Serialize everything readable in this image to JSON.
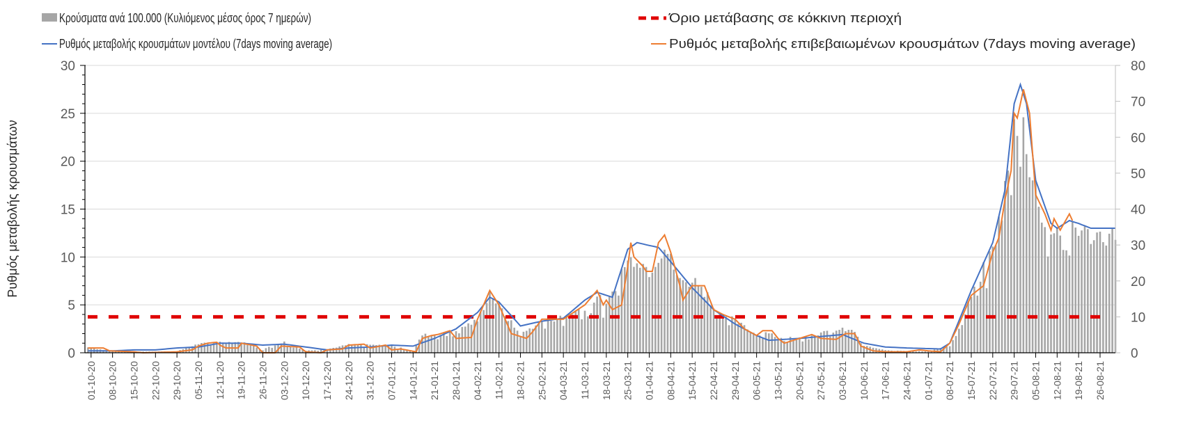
{
  "chart_data": {
    "type": "bar+line",
    "title": "",
    "ylabel": "Ρυθμός μεταβολής κρουσμάτων",
    "ylabel_right": "",
    "ylim": [
      0,
      30
    ],
    "ylim_right": [
      0,
      80
    ],
    "yticks": [
      "0",
      "5",
      "10",
      "15",
      "20",
      "25",
      "30"
    ],
    "yticks_right": [
      "0",
      "10",
      "20",
      "30",
      "40",
      "50",
      "60",
      "70",
      "80"
    ],
    "x_range": [
      "29-09-20",
      "31-08-21"
    ],
    "grid": true,
    "legend_position": "top",
    "xticks": [
      "01-10-20",
      "08-10-20",
      "15-10-20",
      "22-10-20",
      "29-10-20",
      "05-11-20",
      "12-11-20",
      "19-11-20",
      "26-11-20",
      "03-12-20",
      "10-12-20",
      "17-12-20",
      "24-12-20",
      "31-12-20",
      "07-01-21",
      "14-01-21",
      "21-01-21",
      "28-01-21",
      "04-02-21",
      "11-02-21",
      "18-02-21",
      "25-02-21",
      "04-03-21",
      "11-03-21",
      "18-03-21",
      "25-03-21",
      "01-04-21",
      "08-04-21",
      "15-04-21",
      "22-04-21",
      "29-04-21",
      "06-05-21",
      "13-05-21",
      "20-05-21",
      "27-05-21",
      "03-06-21",
      "10-06-21",
      "17-06-21",
      "24-06-21",
      "01-07-21",
      "08-07-21",
      "15-07-21",
      "22-07-21",
      "29-07-21",
      "05-08-21",
      "12-08-21",
      "19-08-21",
      "26-08-21"
    ],
    "series": [
      {
        "name": "Κρούσματα ανά 100.000 (Κυλιόμενος μέσος όρος 7 ημερών)",
        "type": "bar",
        "axis": "right",
        "color": "#a6a6a6",
        "points": [
          [
            "30-09-20",
            1.5
          ],
          [
            "07-10-20",
            0.5
          ],
          [
            "15-10-20",
            0.3
          ],
          [
            "29-10-20",
            0.4
          ],
          [
            "05-11-20",
            2.5
          ],
          [
            "12-11-20",
            3
          ],
          [
            "19-11-20",
            3
          ],
          [
            "26-11-20",
            1.0
          ],
          [
            "03-12-20",
            3
          ],
          [
            "10-12-20",
            0.6
          ],
          [
            "17-12-20",
            1
          ],
          [
            "24-12-20",
            2.3
          ],
          [
            "31-12-20",
            2.2
          ],
          [
            "07-01-21",
            2
          ],
          [
            "14-01-21",
            0.5
          ],
          [
            "17-01-21",
            5
          ],
          [
            "21-01-21",
            5
          ],
          [
            "28-01-21",
            6.5
          ],
          [
            "04-02-21",
            9
          ],
          [
            "08-02-21",
            17
          ],
          [
            "11-02-21",
            13
          ],
          [
            "18-02-21",
            5
          ],
          [
            "25-02-21",
            9
          ],
          [
            "04-03-21",
            10
          ],
          [
            "11-03-21",
            13
          ],
          [
            "15-03-21",
            16
          ],
          [
            "18-03-21",
            13
          ],
          [
            "24-03-21",
            25
          ],
          [
            "28-03-21",
            27
          ],
          [
            "01-04-21",
            23
          ],
          [
            "06-04-21",
            30
          ],
          [
            "08-04-21",
            26
          ],
          [
            "11-04-21",
            20
          ],
          [
            "15-04-21",
            20
          ],
          [
            "19-04-21",
            20
          ],
          [
            "22-04-21",
            12
          ],
          [
            "29-04-21",
            9
          ],
          [
            "06-05-21",
            5
          ],
          [
            "10-05-21",
            6
          ],
          [
            "13-05-21",
            4
          ],
          [
            "20-05-21",
            4.5
          ],
          [
            "27-05-21",
            5.5
          ],
          [
            "03-06-21",
            6.5
          ],
          [
            "07-06-21",
            6
          ],
          [
            "10-06-21",
            2
          ],
          [
            "17-06-21",
            0.7
          ],
          [
            "24-06-21",
            0.5
          ],
          [
            "01-07-21",
            0.4
          ],
          [
            "08-07-21",
            2
          ],
          [
            "12-07-21",
            8
          ],
          [
            "15-07-21",
            16
          ],
          [
            "22-07-21",
            29
          ],
          [
            "25-07-21",
            40
          ],
          [
            "29-07-21",
            63
          ],
          [
            "01-08-21",
            70
          ],
          [
            "03-08-21",
            50
          ],
          [
            "05-08-21",
            46
          ],
          [
            "08-08-21",
            36
          ],
          [
            "12-08-21",
            34
          ],
          [
            "16-08-21",
            37
          ],
          [
            "19-08-21",
            35
          ],
          [
            "22-08-21",
            33
          ],
          [
            "31-08-21",
            33
          ]
        ]
      },
      {
        "name": "Όριο μετάβασης σε κόκκινη περιοχή",
        "type": "hline",
        "axis": "left",
        "color": "#e00000",
        "value": 3.75
      },
      {
        "name": "Ρυθμός μεταβολής κρουσμάτων μοντέλου (7days moving average)",
        "type": "line",
        "axis": "left",
        "color": "#4472c4",
        "points": [
          [
            "30-09-20",
            0.2
          ],
          [
            "08-10-20",
            0.2
          ],
          [
            "15-10-20",
            0.3
          ],
          [
            "22-10-20",
            0.3
          ],
          [
            "29-10-20",
            0.5
          ],
          [
            "05-11-20",
            0.6
          ],
          [
            "12-11-20",
            1.0
          ],
          [
            "19-11-20",
            1.0
          ],
          [
            "26-11-20",
            0.8
          ],
          [
            "03-12-20",
            0.9
          ],
          [
            "10-12-20",
            0.6
          ],
          [
            "17-12-20",
            0.3
          ],
          [
            "24-12-20",
            0.5
          ],
          [
            "31-12-20",
            0.6
          ],
          [
            "07-01-21",
            0.8
          ],
          [
            "14-01-21",
            0.7
          ],
          [
            "21-01-21",
            1.5
          ],
          [
            "28-01-21",
            2.5
          ],
          [
            "04-02-21",
            4.2
          ],
          [
            "08-02-21",
            5.8
          ],
          [
            "11-02-21",
            5.3
          ],
          [
            "18-02-21",
            2.8
          ],
          [
            "25-02-21",
            3.3
          ],
          [
            "04-03-21",
            3.6
          ],
          [
            "11-03-21",
            5.5
          ],
          [
            "15-03-21",
            6.3
          ],
          [
            "20-03-21",
            5.8
          ],
          [
            "25-03-21",
            10.8
          ],
          [
            "28-03-21",
            11.5
          ],
          [
            "01-04-21",
            11.2
          ],
          [
            "04-04-21",
            11.0
          ],
          [
            "08-04-21",
            9.5
          ],
          [
            "15-04-21",
            6.8
          ],
          [
            "22-04-21",
            4.5
          ],
          [
            "29-04-21",
            3.0
          ],
          [
            "06-05-21",
            1.8
          ],
          [
            "10-05-21",
            1.3
          ],
          [
            "20-05-21",
            1.5
          ],
          [
            "27-05-21",
            1.7
          ],
          [
            "03-06-21",
            1.9
          ],
          [
            "10-06-21",
            1.0
          ],
          [
            "17-06-21",
            0.6
          ],
          [
            "24-06-21",
            0.5
          ],
          [
            "05-07-21",
            0.4
          ],
          [
            "08-07-21",
            1.0
          ],
          [
            "15-07-21",
            6.5
          ],
          [
            "22-07-21",
            11.5
          ],
          [
            "26-07-21",
            17
          ],
          [
            "29-07-21",
            26
          ],
          [
            "31-07-21",
            28.0
          ],
          [
            "02-08-21",
            26
          ],
          [
            "05-08-21",
            18
          ],
          [
            "10-08-21",
            13.5
          ],
          [
            "12-08-21",
            13
          ],
          [
            "16-08-21",
            13.8
          ],
          [
            "19-08-21",
            13.5
          ],
          [
            "23-08-21",
            13.0
          ],
          [
            "31-08-21",
            13.0
          ]
        ]
      },
      {
        "name": "Ρυθμός μεταβολής επιβεβαιωμένων κρουσμάτων (7days moving average)",
        "type": "line",
        "axis": "left",
        "color": "#ed7d31",
        "points": [
          [
            "30-09-20",
            0.5
          ],
          [
            "05-10-20",
            0.5
          ],
          [
            "07-10-20",
            0.2
          ],
          [
            "15-10-20",
            0.1
          ],
          [
            "18-10-20",
            0
          ],
          [
            "29-10-20",
            0.1
          ],
          [
            "03-11-20",
            0.3
          ],
          [
            "05-11-20",
            0.7
          ],
          [
            "08-11-20",
            1.0
          ],
          [
            "11-11-20",
            1.1
          ],
          [
            "12-11-20",
            0.8
          ],
          [
            "14-11-20",
            0.5
          ],
          [
            "18-11-20",
            0.5
          ],
          [
            "19-11-20",
            1.0
          ],
          [
            "24-11-20",
            0.7
          ],
          [
            "26-11-20",
            0
          ],
          [
            "30-11-20",
            0
          ],
          [
            "02-12-20",
            0.7
          ],
          [
            "08-12-20",
            0.6
          ],
          [
            "10-12-20",
            0.1
          ],
          [
            "15-12-20",
            0
          ],
          [
            "17-12-20",
            0.3
          ],
          [
            "22-12-20",
            0.4
          ],
          [
            "24-12-20",
            0.8
          ],
          [
            "29-12-20",
            0.9
          ],
          [
            "31-12-20",
            0.5
          ],
          [
            "05-01-21",
            0.8
          ],
          [
            "07-01-21",
            0.3
          ],
          [
            "10-01-21",
            0.4
          ],
          [
            "15-01-21",
            0.1
          ],
          [
            "17-01-21",
            1.5
          ],
          [
            "20-01-21",
            1.8
          ],
          [
            "22-01-21",
            1.9
          ],
          [
            "26-01-21",
            2.3
          ],
          [
            "28-01-21",
            1.5
          ],
          [
            "02-02-21",
            1.6
          ],
          [
            "04-02-21",
            3.5
          ],
          [
            "08-02-21",
            6.5
          ],
          [
            "11-02-21",
            5.0
          ],
          [
            "15-02-21",
            2.0
          ],
          [
            "20-02-21",
            1.5
          ],
          [
            "22-02-21",
            2.2
          ],
          [
            "25-02-21",
            3.5
          ],
          [
            "04-03-21",
            3.5
          ],
          [
            "11-03-21",
            5.0
          ],
          [
            "15-03-21",
            6.5
          ],
          [
            "17-03-21",
            5.0
          ],
          [
            "18-03-21",
            5.5
          ],
          [
            "20-03-21",
            4.5
          ],
          [
            "23-03-21",
            5.0
          ],
          [
            "25-03-21",
            9.0
          ],
          [
            "26-03-21",
            11.5
          ],
          [
            "27-03-21",
            10.0
          ],
          [
            "30-03-21",
            9.0
          ],
          [
            "31-03-21",
            8.5
          ],
          [
            "02-04-21",
            8.5
          ],
          [
            "04-04-21",
            11.5
          ],
          [
            "06-04-21",
            12.3
          ],
          [
            "08-04-21",
            10.5
          ],
          [
            "11-04-21",
            7.0
          ],
          [
            "12-04-21",
            5.5
          ],
          [
            "15-04-21",
            7.0
          ],
          [
            "19-04-21",
            7.0
          ],
          [
            "22-04-21",
            4.5
          ],
          [
            "25-04-21",
            4.0
          ],
          [
            "29-04-21",
            3.5
          ],
          [
            "02-05-21",
            2.5
          ],
          [
            "06-05-21",
            1.8
          ],
          [
            "08-05-21",
            2.3
          ],
          [
            "11-05-21",
            2.3
          ],
          [
            "13-05-21",
            1.5
          ],
          [
            "15-05-21",
            1.0
          ],
          [
            "20-05-21",
            1.5
          ],
          [
            "24-05-21",
            1.9
          ],
          [
            "27-05-21",
            1.5
          ],
          [
            "01-06-21",
            1.4
          ],
          [
            "04-06-21",
            2.0
          ],
          [
            "07-06-21",
            2.0
          ],
          [
            "09-06-21",
            0.7
          ],
          [
            "13-06-21",
            0.2
          ],
          [
            "17-06-21",
            0.1
          ],
          [
            "24-06-21",
            0.1
          ],
          [
            "28-06-21",
            0.3
          ],
          [
            "01-07-21",
            0.2
          ],
          [
            "05-07-21",
            0.1
          ],
          [
            "08-07-21",
            1.0
          ],
          [
            "11-07-21",
            3.0
          ],
          [
            "15-07-21",
            6.0
          ],
          [
            "19-07-21",
            7.0
          ],
          [
            "22-07-21",
            10.5
          ],
          [
            "24-07-21",
            12.0
          ],
          [
            "26-07-21",
            16.0
          ],
          [
            "28-07-21",
            19
          ],
          [
            "29-07-21",
            25.0
          ],
          [
            "30-07-21",
            24.5
          ],
          [
            "01-08-21",
            27.5
          ],
          [
            "03-08-21",
            25
          ],
          [
            "05-08-21",
            16.5
          ],
          [
            "08-08-21",
            14.5
          ],
          [
            "10-08-21",
            12.8
          ],
          [
            "11-08-21",
            14.0
          ],
          [
            "13-08-21",
            12.8
          ],
          [
            "16-08-21",
            14.5
          ],
          [
            "17-08-21",
            13.8
          ]
        ]
      }
    ]
  }
}
